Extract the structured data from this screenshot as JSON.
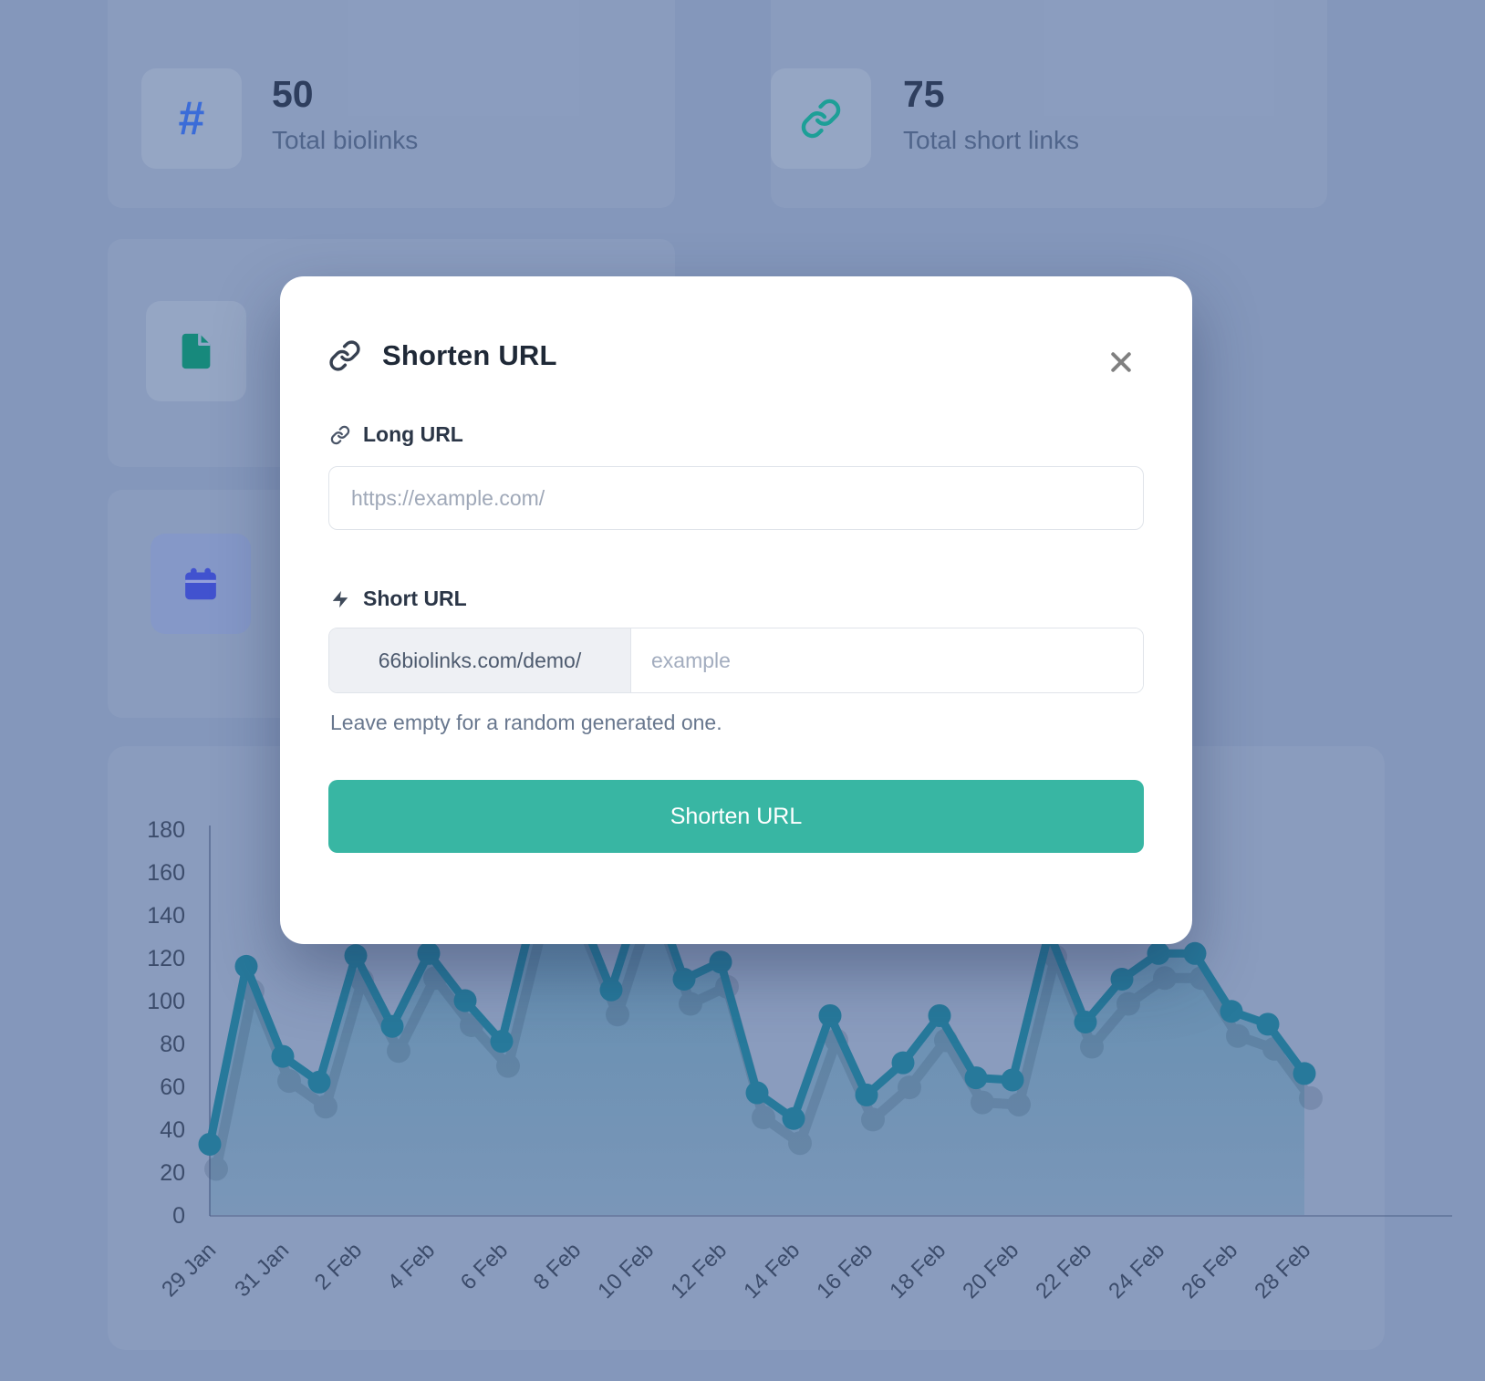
{
  "stats": [
    {
      "glyph": "#",
      "value": "50",
      "label": "Total biolinks"
    },
    {
      "value": "75",
      "label": "Total short links"
    },
    {
      "icon": "file-icon"
    },
    {
      "icon": "calendar-icon"
    }
  ],
  "modal": {
    "title": "Shorten URL",
    "long_url": {
      "label": "Long URL",
      "placeholder": "https://example.com/"
    },
    "short_url": {
      "label": "Short URL",
      "prefix": "66biolinks.com/demo/",
      "placeholder": "example",
      "helper": "Leave empty for a random generated one."
    },
    "submit_label": "Shorten URL"
  },
  "colors": {
    "accent_teal": "#38b6a3",
    "chart_line": "#27799b",
    "hash_blue": "#3b6cd8",
    "link_teal": "#1d9f97",
    "file_teal": "#17897c",
    "calendar_indigo": "#4152cf"
  },
  "chart_data": {
    "type": "area",
    "x": [
      "29 Jan",
      "30 Jan",
      "31 Jan",
      "1 Feb",
      "2 Feb",
      "3 Feb",
      "4 Feb",
      "5 Feb",
      "6 Feb",
      "7 Feb",
      "8 Feb",
      "9 Feb",
      "10 Feb",
      "11 Feb",
      "12 Feb",
      "13 Feb",
      "14 Feb",
      "15 Feb",
      "16 Feb",
      "17 Feb",
      "18 Feb",
      "19 Feb",
      "20 Feb",
      "21 Feb",
      "22 Feb",
      "23 Feb",
      "24 Feb",
      "25 Feb",
      "26 Feb",
      "27 Feb",
      "28 Feb"
    ],
    "values": [
      33,
      116,
      74,
      62,
      121,
      88,
      122,
      100,
      81,
      150,
      147,
      105,
      158,
      110,
      118,
      57,
      45,
      93,
      56,
      71,
      93,
      64,
      63,
      132,
      90,
      110,
      122,
      122,
      95,
      89,
      66
    ],
    "x_tick_labels": [
      "29 Jan",
      "31 Jan",
      "2 Feb",
      "4 Feb",
      "6 Feb",
      "8 Feb",
      "10 Feb",
      "12 Feb",
      "14 Feb",
      "16 Feb",
      "18 Feb",
      "20 Feb",
      "22 Feb",
      "24 Feb",
      "26 Feb",
      "28 Feb"
    ],
    "tick_every": 2,
    "title": "",
    "xlabel": "",
    "ylabel": "",
    "ylim": [
      0,
      180
    ],
    "ytick_step": 20,
    "grid": false,
    "legend": "none",
    "line_color": "#27799b",
    "fill_top": "rgba(39,121,155,0.42)",
    "fill_bottom": "rgba(39,121,155,0.16)"
  }
}
